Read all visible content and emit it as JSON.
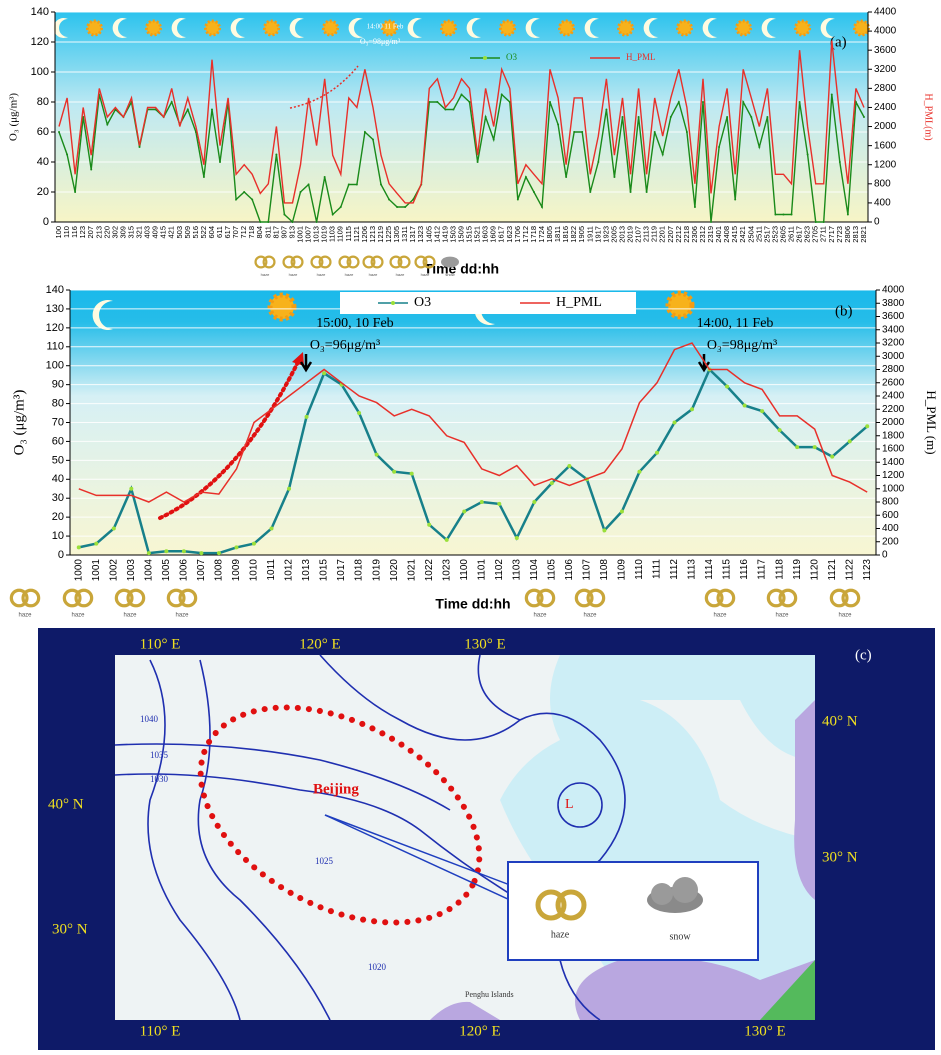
{
  "chart_data": [
    {
      "type": "line",
      "label": "(a)",
      "y_label": "O₃ (μg/m³)",
      "y2_label": "H_PML(m)",
      "x_label": "Time dd:hh",
      "annotations": [
        "14:00 11 Feb",
        "O₃=98μg/m³"
      ],
      "weather_labels": [
        "haze",
        "haze",
        "haze",
        "haze",
        "haze",
        "haze",
        "haze",
        "snow"
      ],
      "categories": [
        "100",
        "110",
        "116",
        "123",
        "207",
        "213",
        "220",
        "302",
        "309",
        "315",
        "321",
        "403",
        "409",
        "415",
        "421",
        "503",
        "509",
        "516",
        "522",
        "604",
        "611",
        "617",
        "707",
        "712",
        "718",
        "804",
        "811",
        "817",
        "907",
        "913",
        "1001",
        "1007",
        "1013",
        "1019",
        "1103",
        "1109",
        "1115",
        "1121",
        "1206",
        "1213",
        "1219",
        "1225",
        "1305",
        "1311",
        "1317",
        "1323",
        "1405",
        "1412",
        "1419",
        "1503",
        "1509",
        "1515",
        "1521",
        "1603",
        "1609",
        "1617",
        "1623",
        "1706",
        "1712",
        "1718",
        "1724",
        "1805",
        "1811",
        "1816",
        "1822",
        "1905",
        "1911",
        "1917",
        "1923",
        "2005",
        "2013",
        "2019",
        "2107",
        "2113",
        "2119",
        "2201",
        "2207",
        "2212",
        "2218",
        "2306",
        "2312",
        "2319",
        "2401",
        "2408",
        "2415",
        "2421",
        "2504",
        "2511",
        "2517",
        "2523",
        "2605",
        "2611",
        "2617",
        "2623",
        "2705",
        "2711",
        "2717",
        "2723",
        "2806",
        "2813",
        "2821"
      ],
      "series": [
        {
          "name": "O3",
          "color": "#1a8a1a",
          "values": [
            60,
            45,
            20,
            70,
            35,
            85,
            65,
            75,
            70,
            80,
            50,
            75,
            75,
            70,
            80,
            65,
            75,
            60,
            30,
            75,
            40,
            80,
            15,
            20,
            15,
            0,
            0,
            45,
            5,
            0,
            20,
            25,
            0,
            30,
            5,
            10,
            25,
            25,
            60,
            55,
            25,
            15,
            10,
            10,
            15,
            25,
            80,
            80,
            75,
            75,
            85,
            80,
            40,
            70,
            55,
            85,
            80,
            15,
            30,
            20,
            10,
            80,
            65,
            30,
            60,
            60,
            20,
            40,
            75,
            30,
            70,
            20,
            70,
            20,
            60,
            45,
            70,
            80,
            60,
            10,
            80,
            0,
            50,
            70,
            15,
            80,
            70,
            50,
            70,
            5,
            5,
            5,
            80,
            45,
            0,
            0,
            85,
            40,
            5,
            80,
            70
          ]
        },
        {
          "name": "H_PML",
          "color": "#e8302a",
          "axis": "y2",
          "values": [
            2000,
            2600,
            1000,
            2400,
            1400,
            2800,
            2200,
            2400,
            2200,
            2600,
            1600,
            2400,
            2400,
            2200,
            2800,
            2000,
            2600,
            2000,
            1200,
            3400,
            1600,
            2600,
            1000,
            1200,
            1000,
            600,
            800,
            2000,
            400,
            400,
            1200,
            2600,
            1600,
            3000,
            1400,
            1000,
            2600,
            2400,
            3200,
            2400,
            1400,
            800,
            600,
            400,
            400,
            800,
            2800,
            3000,
            2400,
            2600,
            3000,
            2800,
            1400,
            2800,
            2000,
            3200,
            2800,
            800,
            1200,
            1000,
            800,
            3200,
            2600,
            1200,
            2600,
            2600,
            1000,
            1800,
            3000,
            1400,
            2600,
            1000,
            2800,
            1000,
            2600,
            1800,
            2600,
            3200,
            2400,
            800,
            3000,
            600,
            2000,
            2800,
            1000,
            3200,
            2600,
            2000,
            2800,
            1000,
            1000,
            800,
            3600,
            2000,
            800,
            800,
            3800,
            2200,
            800,
            2800,
            2400
          ]
        }
      ],
      "ylim": [
        0,
        140
      ],
      "yticks": [
        0,
        20,
        40,
        60,
        80,
        100,
        120,
        140
      ],
      "y2lim": [
        0,
        4400
      ],
      "y2ticks": [
        0,
        400,
        800,
        1200,
        1600,
        2000,
        2400,
        2800,
        3200,
        3600,
        4000,
        4400
      ],
      "grid": true
    },
    {
      "type": "line",
      "label": "(b)",
      "y_label": "O₃ (μg/m³)",
      "y2_label": "H_PML (m)",
      "x_label": "Time dd:hh",
      "annotations": [
        "15:00, 10 Feb",
        "O₃=96μg/m³",
        "14:00, 11 Feb",
        "O₃=98μg/m³"
      ],
      "weather_labels": [
        "haze",
        "haze",
        "haze",
        "haze",
        "haze",
        "haze",
        "haze",
        "haze",
        "haze"
      ],
      "categories": [
        "1000",
        "1001",
        "1002",
        "1003",
        "1004",
        "1005",
        "1006",
        "1007",
        "1008",
        "1009",
        "1010",
        "1011",
        "1012",
        "1013",
        "1015",
        "1017",
        "1018",
        "1019",
        "1020",
        "1021",
        "1022",
        "1023",
        "1100",
        "1101",
        "1102",
        "1103",
        "1104",
        "1105",
        "1106",
        "1107",
        "1108",
        "1109",
        "1110",
        "1111",
        "1112",
        "1113",
        "1114",
        "1115",
        "1116",
        "1117",
        "1118",
        "1119",
        "1120",
        "1121",
        "1122",
        "1123"
      ],
      "series": [
        {
          "name": "O3",
          "color": "#17808a",
          "values": [
            4,
            6,
            14,
            35,
            1,
            2,
            2,
            1,
            1,
            4,
            6,
            14,
            35,
            73,
            96,
            90,
            75,
            53,
            44,
            43,
            16,
            8,
            23,
            28,
            27,
            9,
            28,
            38,
            47,
            40,
            13,
            23,
            44,
            54,
            70,
            77,
            98,
            89,
            79,
            76,
            66,
            57,
            57,
            52,
            60,
            68
          ]
        },
        {
          "name": "H_PML",
          "color": "#e8302a",
          "axis": "y2",
          "values": [
            1000,
            900,
            900,
            900,
            800,
            950,
            800,
            950,
            920,
            1300,
            2000,
            2200,
            2400,
            2600,
            2800,
            2600,
            2400,
            2300,
            2100,
            2200,
            2100,
            1800,
            1700,
            1300,
            1200,
            1350,
            1050,
            1150,
            1050,
            1150,
            1250,
            1600,
            2300,
            2600,
            3100,
            3200,
            2800,
            2800,
            2600,
            2500,
            2100,
            2100,
            1900,
            1200,
            1100,
            950
          ]
        }
      ],
      "ylim": [
        0,
        140
      ],
      "yticks": [
        0,
        10,
        20,
        30,
        40,
        50,
        60,
        70,
        80,
        90,
        100,
        110,
        120,
        130,
        140
      ],
      "y2lim": [
        0,
        4000
      ],
      "y2ticks": [
        0,
        200,
        400,
        600,
        800,
        1000,
        1200,
        1400,
        1600,
        1800,
        2000,
        2200,
        2400,
        2600,
        2800,
        3000,
        3200,
        3400,
        3600,
        3800,
        4000
      ],
      "grid": true
    }
  ],
  "map": {
    "label": "(c)",
    "lon_labels": [
      "110° E",
      "120° E",
      "130° E"
    ],
    "lat_labels": [
      "40° N",
      "30° N"
    ],
    "city": "Beijing",
    "low": "L",
    "isobars": [
      "1040",
      "1035",
      "1030",
      "1025",
      "1020"
    ],
    "legend": [
      "haze",
      "snow"
    ],
    "place": "Penghu Islands"
  }
}
